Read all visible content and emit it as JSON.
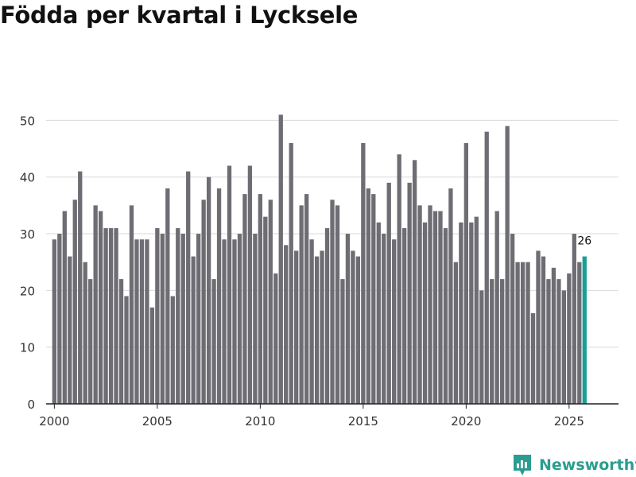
{
  "title": "Födda per kvartal i Lycksele",
  "brand": {
    "name": "Newsworthy",
    "icon": "newsworthy-logo-icon",
    "color": "#2a9d8f"
  },
  "colors": {
    "bar": "#6e6d73",
    "highlight": "#1a9e96",
    "grid": "#d9d9d9",
    "axis": "#222222"
  },
  "chart_data": {
    "type": "bar",
    "title": "Födda per kvartal i Lycksele",
    "xlabel": "",
    "ylabel": "",
    "x_start_year": 2000,
    "periods_per_year": 4,
    "xlim": [
      1999.6,
      2027.4
    ],
    "ylim": [
      0,
      53
    ],
    "yticks": [
      0,
      10,
      20,
      30,
      40,
      50
    ],
    "xticks": [
      2000,
      2005,
      2010,
      2015,
      2020,
      2025
    ],
    "grid": true,
    "values": [
      29,
      30,
      34,
      26,
      36,
      41,
      25,
      22,
      35,
      34,
      31,
      31,
      31,
      22,
      19,
      35,
      29,
      29,
      29,
      17,
      31,
      30,
      38,
      19,
      31,
      30,
      41,
      26,
      30,
      36,
      40,
      22,
      38,
      29,
      42,
      29,
      30,
      37,
      42,
      30,
      37,
      33,
      36,
      23,
      51,
      28,
      46,
      27,
      35,
      37,
      29,
      26,
      27,
      31,
      36,
      35,
      22,
      30,
      27,
      26,
      46,
      38,
      37,
      32,
      30,
      39,
      29,
      44,
      31,
      39,
      43,
      35,
      32,
      35,
      34,
      34,
      31,
      38,
      25,
      32,
      46,
      32,
      33,
      20,
      48,
      22,
      34,
      22,
      49,
      30,
      25,
      25,
      25,
      16,
      27,
      26,
      22,
      24,
      22,
      20,
      23,
      30,
      25,
      26
    ],
    "highlight_index": 103,
    "highlight_label": "26"
  }
}
